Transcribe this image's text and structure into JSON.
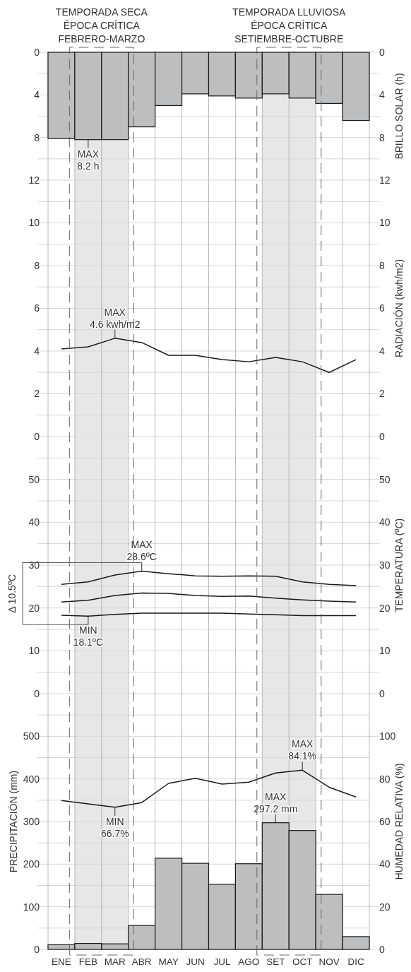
{
  "chart_data": [
    {
      "type": "bar",
      "categories": [
        "ENE",
        "FEB",
        "MAR",
        "ABR",
        "MAY",
        "JUN",
        "JUL",
        "AGO",
        "SET",
        "OCT",
        "NOV",
        "DIC"
      ],
      "values": [
        8.1,
        8.2,
        8.2,
        7.0,
        5.0,
        3.9,
        4.1,
        4.3,
        3.9,
        4.3,
        4.8,
        6.4
      ],
      "color": "#bdbec0",
      "ylim": [
        12,
        0
      ],
      "yticks": [
        0,
        {
          "value": 2,
          "label": null
        },
        4,
        {
          "value": 6,
          "label": null
        },
        8,
        {
          "value": 10,
          "label": null
        }
      ],
      "y2lim": [
        12,
        0
      ],
      "y2ticks": [
        0,
        {
          "value": 2,
          "label": null
        },
        4,
        {
          "value": 6,
          "label": null
        },
        8,
        {
          "value": 10,
          "label": null
        }
      ],
      "y2label": "BRILLO SOLAR (h)",
      "grid": true,
      "tick_labels": "y",
      "bands": [
        {
          "axis": "x",
          "from": "FEB",
          "to": "MAR",
          "label": "TEMPORADA SECA\nÉPOCA CRÍTICA\nFEBRERO-MARZO",
          "color": "#e6e7e9"
        },
        {
          "axis": "x",
          "from": "SET",
          "to": "OCT",
          "label": "TEMPORADA LLUVIOSA\nÉPOCA CRÍTICA\nSETIEMBRE-OCTUBRE",
          "color": "#e6e7e9"
        }
      ],
      "annotations": [
        {
          "text": "MAX\n8.2 h",
          "x": "FEB",
          "y": 8.2
        }
      ]
    },
    {
      "type": "line",
      "categories": [
        "ENE",
        "FEB",
        "MAR",
        "ABR",
        "MAY",
        "JUN",
        "JUL",
        "AGO",
        "SET",
        "OCT",
        "NOV",
        "DIC"
      ],
      "values": [
        4.1,
        4.2,
        4.6,
        4.4,
        3.8,
        3.8,
        3.6,
        3.5,
        3.7,
        3.5,
        3.0,
        3.6
      ],
      "color": "#1a1a1a",
      "ylim": [
        0,
        12
      ],
      "yticks": [
        0,
        {
          "value": 1,
          "label": null
        },
        2,
        {
          "value": 3,
          "label": null
        },
        4,
        {
          "value": 5,
          "label": null
        },
        6,
        {
          "value": 7,
          "label": null
        },
        8,
        {
          "value": 9,
          "label": null
        },
        10,
        {
          "value": 11,
          "label": null
        },
        12
      ],
      "y2lim": [
        0,
        12
      ],
      "y2ticks": [
        0,
        {
          "value": 1,
          "label": null
        },
        2,
        {
          "value": 3,
          "label": null
        },
        4,
        {
          "value": 5,
          "label": null
        },
        6,
        {
          "value": 7,
          "label": null
        },
        8,
        {
          "value": 9,
          "label": null
        },
        10,
        {
          "value": 11,
          "label": null
        },
        12
      ],
      "y2label": "RADIACIÓN (kwh/m2)",
      "grid": true,
      "tick_labels": "y",
      "bands": [
        {
          "axis": "x",
          "from": "FEB",
          "to": "MAR",
          "color": "#e6e7e9"
        },
        {
          "axis": "x",
          "from": "SET",
          "to": "OCT",
          "color": "#e6e7e9"
        }
      ],
      "annotations": [
        {
          "text": "MAX\n4.6 kwh/m2",
          "x": "MAR",
          "y": 4.6
        }
      ]
    },
    {
      "type": "line",
      "categories": [
        "ENE",
        "FEB",
        "MAR",
        "ABR",
        "MAY",
        "JUN",
        "JUL",
        "AGO",
        "SET",
        "OCT",
        "NOV",
        "DIC"
      ],
      "series": [
        {
          "color": "#1a1a1a",
          "values": [
            25.5,
            26.1,
            27.7,
            28.6,
            28.0,
            27.5,
            27.4,
            27.5,
            27.4,
            26.1,
            25.5,
            25.2
          ]
        },
        {
          "color": "#1a1a1a",
          "values": [
            21.4,
            21.8,
            22.9,
            23.5,
            23.4,
            22.9,
            22.7,
            22.8,
            22.3,
            21.9,
            21.6,
            21.4
          ]
        },
        {
          "color": "#1a1a1a",
          "values": [
            18.3,
            18.1,
            18.5,
            18.8,
            18.8,
            18.8,
            18.8,
            18.6,
            18.4,
            18.2,
            18.2,
            18.2
          ]
        }
      ],
      "ylim": [
        0,
        60
      ],
      "yticks": [
        0,
        {
          "value": 5,
          "label": null
        },
        10,
        {
          "value": 15,
          "label": null
        },
        20,
        {
          "value": 25,
          "label": null
        },
        30,
        {
          "value": 35,
          "label": null
        },
        40,
        {
          "value": 45,
          "label": null
        },
        50,
        {
          "value": 55,
          "label": null
        }
      ],
      "y2lim": [
        0,
        60
      ],
      "y2ticks": [
        0,
        {
          "value": 5,
          "label": null
        },
        10,
        {
          "value": 15,
          "label": null
        },
        20,
        {
          "value": 25,
          "label": null
        },
        30,
        {
          "value": 35,
          "label": null
        },
        40,
        {
          "value": 45,
          "label": null
        },
        50,
        {
          "value": 55,
          "label": null
        }
      ],
      "y2label": "TEMPERATURA (ºC)",
      "grid": true,
      "tick_labels": "y",
      "bands": [
        {
          "axis": "x",
          "from": "FEB",
          "to": "MAR",
          "color": "#e6e7e9"
        },
        {
          "axis": "x",
          "from": "SET",
          "to": "OCT",
          "color": "#e6e7e9"
        }
      ],
      "annotations": [
        {
          "text": "MAX\n28.6ºC",
          "x": "ABR",
          "y": 28.6
        },
        {
          "text": "MIN\n18.1ºC",
          "x": "FEB",
          "y": 18.1
        },
        "Δ 10.5ºC"
      ]
    },
    {
      "type": "bar",
      "categories": [
        "ENE",
        "FEB",
        "MAR",
        "ABR",
        "MAY",
        "JUN",
        "JUL",
        "AGO",
        "SET",
        "OCT",
        "NOV",
        "DIC"
      ],
      "series": [
        {
          "color": "#bdbec0",
          "values": [
            11,
            14,
            13,
            56,
            214,
            202,
            153,
            201,
            297.2,
            279,
            129,
            30
          ]
        },
        {
          "type": "line",
          "axis": "y2",
          "color": "#1a1a1a",
          "values": [
            69.9,
            68.3,
            66.7,
            68.9,
            77.9,
            80.3,
            77.6,
            78.5,
            82.8,
            84.1,
            76.1,
            71.5
          ]
        }
      ],
      "ylim": [
        0,
        600
      ],
      "yticks": [
        0,
        {
          "value": 50,
          "label": null
        },
        100,
        {
          "value": 150,
          "label": null
        },
        200,
        {
          "value": 250,
          "label": null
        },
        300,
        {
          "value": 350,
          "label": null
        },
        400,
        {
          "value": 450,
          "label": null
        },
        500,
        {
          "value": 550,
          "label": null
        }
      ],
      "y2lim": [
        0,
        120
      ],
      "y2ticks": [
        0,
        20,
        40,
        60,
        80,
        100
      ],
      "ylabel": "PRECIPITACIÓN (mm)",
      "y2label": "HUMEDAD RELATIVA (%)",
      "grid": true,
      "bands": [
        {
          "axis": "x",
          "from": "FEB",
          "to": "MAR",
          "color": "#e6e7e9"
        },
        {
          "axis": "x",
          "from": "SET",
          "to": "OCT",
          "color": "#e6e7e9"
        }
      ],
      "annotations": [
        {
          "text": "MAX\n297.2 mm",
          "x": "SET",
          "y": 297.2
        },
        "MAX\n84.1%",
        "MIN\n66.7%"
      ]
    }
  ]
}
